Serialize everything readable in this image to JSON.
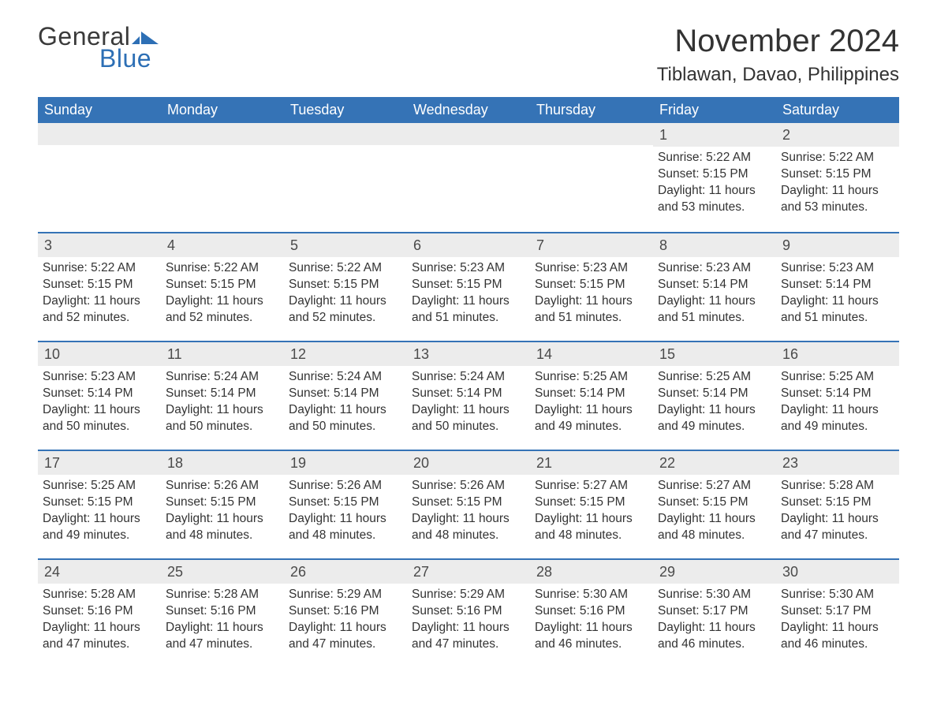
{
  "brand": {
    "word1": "General",
    "word2": "Blue",
    "flag_color": "#2d6fb5",
    "word1_color": "#3a3a3a",
    "word2_color": "#2d6fb5"
  },
  "title": "November 2024",
  "location": "Tiblawan, Davao, Philippines",
  "colors": {
    "header_bg": "#3573b6",
    "header_text": "#ffffff",
    "daynum_bg": "#ececec",
    "text": "#333333",
    "week_border": "#3573b6",
    "page_bg": "#ffffff"
  },
  "day_names": [
    "Sunday",
    "Monday",
    "Tuesday",
    "Wednesday",
    "Thursday",
    "Friday",
    "Saturday"
  ],
  "weeks": [
    [
      {
        "blank": true
      },
      {
        "blank": true
      },
      {
        "blank": true
      },
      {
        "blank": true
      },
      {
        "blank": true
      },
      {
        "day": 1,
        "sunrise": "5:22 AM",
        "sunset": "5:15 PM",
        "daylight": "11 hours and 53 minutes."
      },
      {
        "day": 2,
        "sunrise": "5:22 AM",
        "sunset": "5:15 PM",
        "daylight": "11 hours and 53 minutes."
      }
    ],
    [
      {
        "day": 3,
        "sunrise": "5:22 AM",
        "sunset": "5:15 PM",
        "daylight": "11 hours and 52 minutes."
      },
      {
        "day": 4,
        "sunrise": "5:22 AM",
        "sunset": "5:15 PM",
        "daylight": "11 hours and 52 minutes."
      },
      {
        "day": 5,
        "sunrise": "5:22 AM",
        "sunset": "5:15 PM",
        "daylight": "11 hours and 52 minutes."
      },
      {
        "day": 6,
        "sunrise": "5:23 AM",
        "sunset": "5:15 PM",
        "daylight": "11 hours and 51 minutes."
      },
      {
        "day": 7,
        "sunrise": "5:23 AM",
        "sunset": "5:15 PM",
        "daylight": "11 hours and 51 minutes."
      },
      {
        "day": 8,
        "sunrise": "5:23 AM",
        "sunset": "5:14 PM",
        "daylight": "11 hours and 51 minutes."
      },
      {
        "day": 9,
        "sunrise": "5:23 AM",
        "sunset": "5:14 PM",
        "daylight": "11 hours and 51 minutes."
      }
    ],
    [
      {
        "day": 10,
        "sunrise": "5:23 AM",
        "sunset": "5:14 PM",
        "daylight": "11 hours and 50 minutes."
      },
      {
        "day": 11,
        "sunrise": "5:24 AM",
        "sunset": "5:14 PM",
        "daylight": "11 hours and 50 minutes."
      },
      {
        "day": 12,
        "sunrise": "5:24 AM",
        "sunset": "5:14 PM",
        "daylight": "11 hours and 50 minutes."
      },
      {
        "day": 13,
        "sunrise": "5:24 AM",
        "sunset": "5:14 PM",
        "daylight": "11 hours and 50 minutes."
      },
      {
        "day": 14,
        "sunrise": "5:25 AM",
        "sunset": "5:14 PM",
        "daylight": "11 hours and 49 minutes."
      },
      {
        "day": 15,
        "sunrise": "5:25 AM",
        "sunset": "5:14 PM",
        "daylight": "11 hours and 49 minutes."
      },
      {
        "day": 16,
        "sunrise": "5:25 AM",
        "sunset": "5:14 PM",
        "daylight": "11 hours and 49 minutes."
      }
    ],
    [
      {
        "day": 17,
        "sunrise": "5:25 AM",
        "sunset": "5:15 PM",
        "daylight": "11 hours and 49 minutes."
      },
      {
        "day": 18,
        "sunrise": "5:26 AM",
        "sunset": "5:15 PM",
        "daylight": "11 hours and 48 minutes."
      },
      {
        "day": 19,
        "sunrise": "5:26 AM",
        "sunset": "5:15 PM",
        "daylight": "11 hours and 48 minutes."
      },
      {
        "day": 20,
        "sunrise": "5:26 AM",
        "sunset": "5:15 PM",
        "daylight": "11 hours and 48 minutes."
      },
      {
        "day": 21,
        "sunrise": "5:27 AM",
        "sunset": "5:15 PM",
        "daylight": "11 hours and 48 minutes."
      },
      {
        "day": 22,
        "sunrise": "5:27 AM",
        "sunset": "5:15 PM",
        "daylight": "11 hours and 48 minutes."
      },
      {
        "day": 23,
        "sunrise": "5:28 AM",
        "sunset": "5:15 PM",
        "daylight": "11 hours and 47 minutes."
      }
    ],
    [
      {
        "day": 24,
        "sunrise": "5:28 AM",
        "sunset": "5:16 PM",
        "daylight": "11 hours and 47 minutes."
      },
      {
        "day": 25,
        "sunrise": "5:28 AM",
        "sunset": "5:16 PM",
        "daylight": "11 hours and 47 minutes."
      },
      {
        "day": 26,
        "sunrise": "5:29 AM",
        "sunset": "5:16 PM",
        "daylight": "11 hours and 47 minutes."
      },
      {
        "day": 27,
        "sunrise": "5:29 AM",
        "sunset": "5:16 PM",
        "daylight": "11 hours and 47 minutes."
      },
      {
        "day": 28,
        "sunrise": "5:30 AM",
        "sunset": "5:16 PM",
        "daylight": "11 hours and 46 minutes."
      },
      {
        "day": 29,
        "sunrise": "5:30 AM",
        "sunset": "5:17 PM",
        "daylight": "11 hours and 46 minutes."
      },
      {
        "day": 30,
        "sunrise": "5:30 AM",
        "sunset": "5:17 PM",
        "daylight": "11 hours and 46 minutes."
      }
    ]
  ],
  "labels": {
    "sunrise": "Sunrise:",
    "sunset": "Sunset:",
    "daylight": "Daylight:"
  }
}
